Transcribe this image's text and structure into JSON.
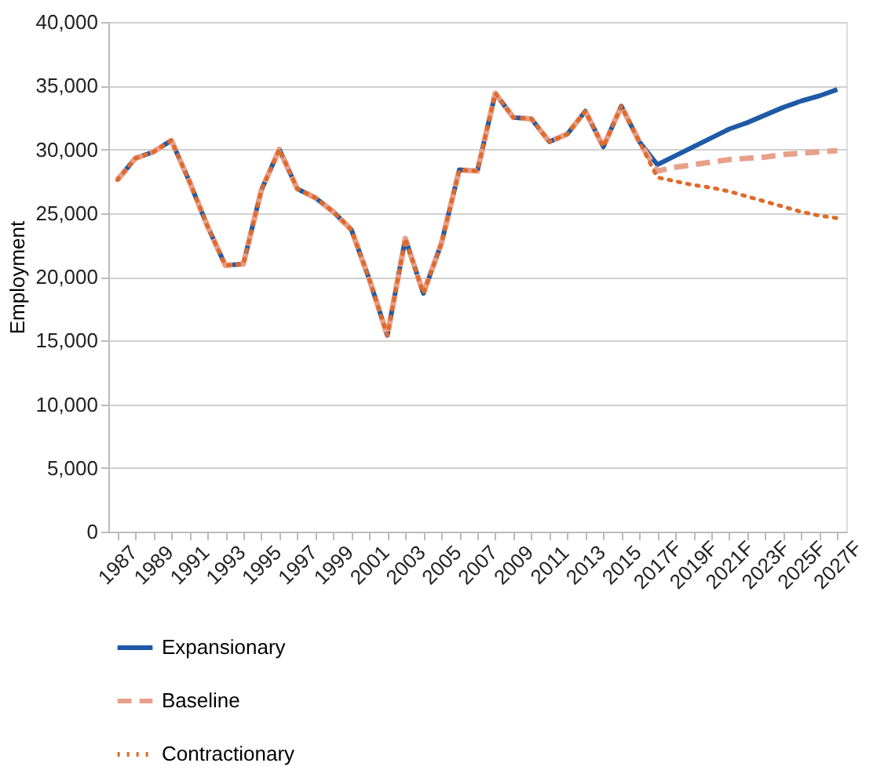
{
  "chart_data": {
    "type": "line",
    "ylabel": "Employment",
    "categories": [
      "1987",
      null,
      "1989",
      null,
      "1991",
      null,
      "1993",
      null,
      "1995",
      null,
      "1997",
      null,
      "1999",
      null,
      "2001",
      null,
      "2003",
      null,
      "2005",
      null,
      "2007",
      null,
      "2009",
      null,
      "2011",
      null,
      "2013",
      null,
      "2015",
      null,
      "2017F",
      null,
      "2019F",
      null,
      "2021F",
      null,
      "2023F",
      null,
      "2025F",
      null,
      "2027F"
    ],
    "ylim": [
      0,
      40000
    ],
    "yticks": [
      0,
      {
        "value": 5000,
        "label": "5,000"
      },
      {
        "value": 10000,
        "label": "10,000"
      },
      {
        "value": 15000,
        "label": "15,000"
      },
      {
        "value": 20000,
        "label": "20,000"
      },
      {
        "value": 25000,
        "label": "25,000"
      },
      {
        "value": 30000,
        "label": "30,000"
      },
      {
        "value": 35000,
        "label": "35,000"
      },
      {
        "value": 40000,
        "label": "40,000"
      }
    ],
    "grid": "y",
    "legend": "bottom left",
    "series": [
      {
        "name": "Expansionary",
        "color": "#1f5aa6",
        "line_style": "solid",
        "values": [
          27600,
          29300,
          29800,
          30700,
          27500,
          24000,
          20900,
          21000,
          26800,
          30000,
          26900,
          26200,
          25100,
          23700,
          19800,
          15400,
          23000,
          18700,
          22600,
          28400,
          28300,
          34400,
          32500,
          32400,
          30600,
          31200,
          33000,
          30200,
          33400,
          30600,
          28800,
          29500,
          30200,
          30900,
          31600,
          32100,
          32700,
          33300,
          33800,
          34200,
          34700
        ]
      },
      {
        "name": "Baseline",
        "color": "#e8a08a",
        "line_style": "dashed",
        "values": [
          27600,
          29300,
          29800,
          30700,
          27500,
          24000,
          20900,
          21000,
          26800,
          30000,
          26900,
          26200,
          25100,
          23700,
          19800,
          15400,
          23000,
          18700,
          22600,
          28400,
          28300,
          34400,
          32500,
          32400,
          30600,
          31200,
          33000,
          30200,
          33400,
          30600,
          28300,
          28600,
          28800,
          29000,
          29200,
          29300,
          29400,
          29600,
          29700,
          29800,
          29900
        ]
      },
      {
        "name": "Contractionary",
        "color": "#e06a2a",
        "line_style": "dotted",
        "values": [
          27600,
          29300,
          29800,
          30700,
          27500,
          24000,
          20900,
          21000,
          26800,
          30000,
          26900,
          26200,
          25100,
          23700,
          19800,
          15400,
          23000,
          18700,
          22600,
          28400,
          28300,
          34400,
          32500,
          32400,
          30600,
          31200,
          33000,
          30200,
          33400,
          30600,
          27800,
          27500,
          27200,
          27000,
          26700,
          26300,
          25900,
          25500,
          25100,
          24800,
          24600
        ]
      }
    ]
  }
}
